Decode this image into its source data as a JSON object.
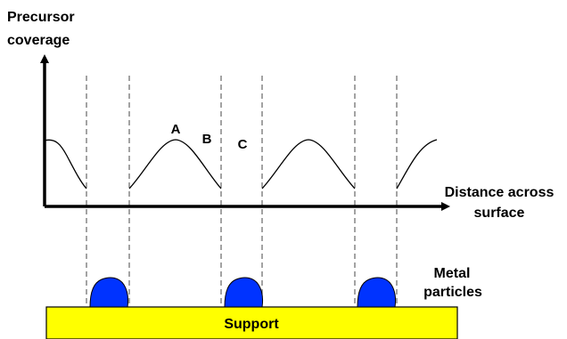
{
  "y_axis_label": {
    "lines": [
      "Precursor",
      "coverage"
    ]
  },
  "x_axis_label": {
    "lines": [
      "Distance across",
      "surface"
    ]
  },
  "curve_labels": [
    "A",
    "B",
    "C"
  ],
  "particles_label": {
    "lines": [
      "Metal",
      "particles"
    ]
  },
  "support_label": "Support"
}
